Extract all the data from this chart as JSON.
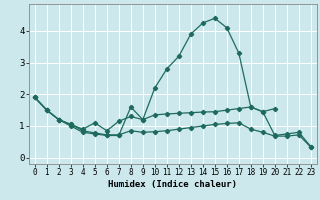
{
  "title": "",
  "xlabel": "Humidex (Indice chaleur)",
  "bg_color": "#cce8ec",
  "grid_color": "#ffffff",
  "line_color": "#1e6b5e",
  "xlim": [
    -0.5,
    23.5
  ],
  "ylim": [
    -0.2,
    4.85
  ],
  "xticks": [
    0,
    1,
    2,
    3,
    4,
    5,
    6,
    7,
    8,
    9,
    10,
    11,
    12,
    13,
    14,
    15,
    16,
    17,
    18,
    19,
    20,
    21,
    22,
    23
  ],
  "yticks": [
    0,
    1,
    2,
    3,
    4
  ],
  "curve1_y": [
    1.9,
    1.5,
    1.2,
    1.0,
    0.8,
    0.75,
    0.7,
    0.7,
    1.6,
    1.2,
    2.2,
    2.8,
    3.2,
    3.9,
    4.25,
    4.4,
    4.1,
    3.3,
    1.6,
    1.45,
    0.7,
    0.75,
    0.8,
    0.35
  ],
  "curve2_y": [
    1.9,
    1.5,
    1.2,
    1.05,
    0.9,
    1.1,
    0.85,
    1.15,
    1.3,
    1.2,
    1.35,
    1.38,
    1.4,
    1.42,
    1.44,
    1.45,
    1.5,
    1.55,
    1.6,
    1.45,
    1.55,
    null,
    null,
    null
  ],
  "curve3_y": [
    1.9,
    1.5,
    1.2,
    1.05,
    0.85,
    0.78,
    0.72,
    0.72,
    0.85,
    0.8,
    0.82,
    0.85,
    0.9,
    0.95,
    1.0,
    1.05,
    1.08,
    1.1,
    0.9,
    0.8,
    0.68,
    0.68,
    0.72,
    0.33
  ]
}
